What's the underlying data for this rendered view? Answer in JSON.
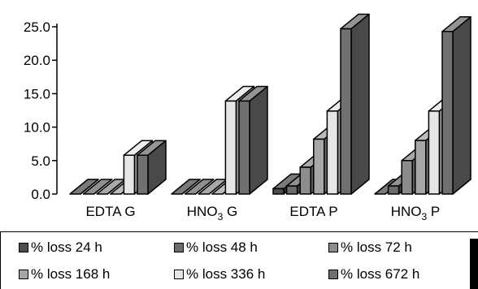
{
  "chart_data": {
    "type": "bar",
    "style": "3d-grouped",
    "title": "",
    "xlabel": "",
    "ylabel": "",
    "ylim": [
      0,
      25
    ],
    "y_ticks": [
      "0.0",
      "5.0",
      "10.0",
      "15.0",
      "20.0",
      "25.0"
    ],
    "grid": false,
    "legend_position": "bottom",
    "categories": [
      {
        "text": "EDTA  G",
        "main": "EDTA  G",
        "sub": "",
        "tail": ""
      },
      {
        "text": "HNO3  G",
        "main": "HNO",
        "sub": "3",
        "tail": "  G"
      },
      {
        "text": "EDTA  P",
        "main": "EDTA  P",
        "sub": "",
        "tail": ""
      },
      {
        "text": "HNO3  P",
        "main": "HNO",
        "sub": "3",
        "tail": "  P"
      }
    ],
    "series": [
      {
        "name": "% loss 24 h",
        "color": "#4d4d4d",
        "values": [
          0,
          0,
          0.8,
          0
        ]
      },
      {
        "name": "% loss 48 h",
        "color": "#6b6b6b",
        "values": [
          0,
          0,
          1.2,
          1.2
        ]
      },
      {
        "name": "% loss 72 h",
        "color": "#8c8c8c",
        "values": [
          0,
          0,
          4.0,
          5.0
        ]
      },
      {
        "name": "% loss 168 h",
        "color": "#a6a6a6",
        "values": [
          0,
          0,
          8.2,
          8.0
        ]
      },
      {
        "name": "% loss 336 h",
        "color": "#e6e6e6",
        "values": [
          5.8,
          13.9,
          12.4,
          12.4
        ]
      },
      {
        "name": "% loss 672 h",
        "color": "#707070",
        "values": [
          5.8,
          13.9,
          24.7,
          24.3
        ]
      }
    ]
  }
}
